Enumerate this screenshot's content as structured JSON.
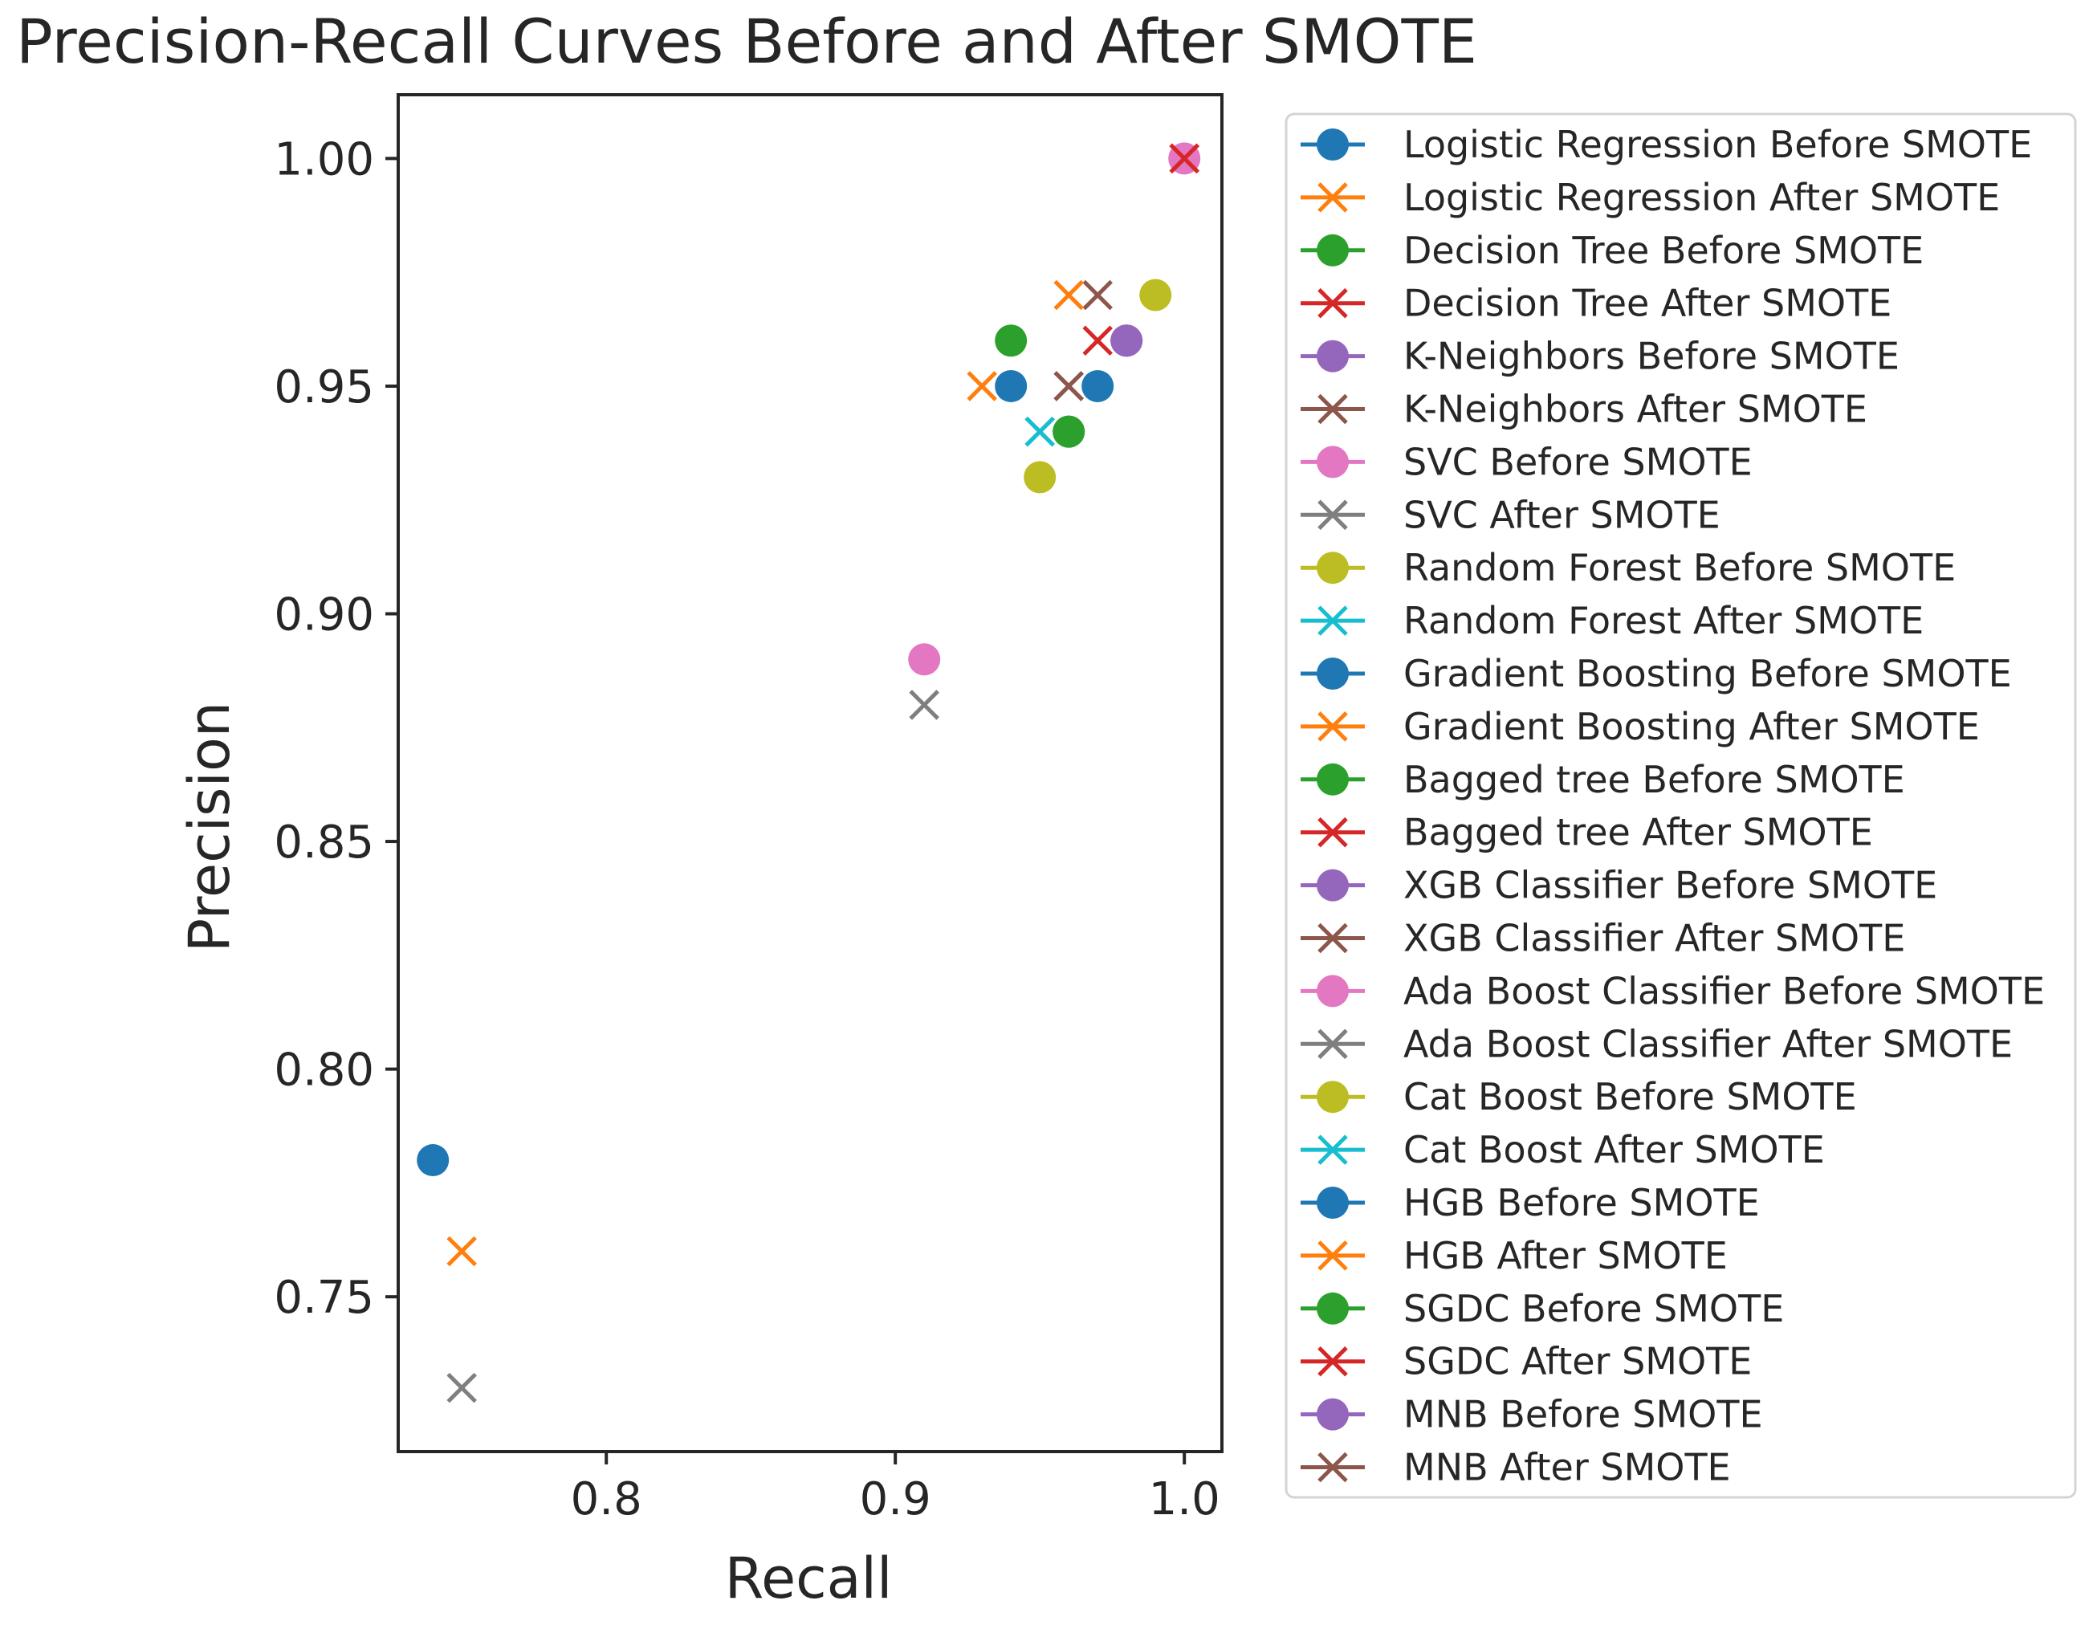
{
  "chart_data": {
    "type": "scatter",
    "title": "Precision-Recall Curves Before and After SMOTE",
    "xlabel": "Recall",
    "ylabel": "Precision",
    "xlim": [
      0.728,
      1.013
    ],
    "ylim": [
      0.716,
      1.014
    ],
    "xticks": [
      0.8,
      0.9,
      1.0
    ],
    "xtick_labels": [
      "0.8",
      "0.9",
      "1.0"
    ],
    "yticks": [
      0.75,
      0.8,
      0.85,
      0.9,
      0.95,
      1.0
    ],
    "ytick_labels": [
      "0.75",
      "0.80",
      "0.85",
      "0.90",
      "0.95",
      "1.00"
    ],
    "grid": false,
    "legend_position": "outside-right",
    "series": [
      {
        "name": "Logistic Regression Before SMOTE",
        "marker": "circle",
        "color": "#1f77b4",
        "points": [
          [
            0.74,
            0.78
          ]
        ]
      },
      {
        "name": "Logistic Regression After SMOTE",
        "marker": "x",
        "color": "#ff7f0e",
        "points": [
          [
            0.75,
            0.76
          ]
        ]
      },
      {
        "name": "Decision Tree Before SMOTE",
        "marker": "circle",
        "color": "#2ca02c",
        "points": [
          [
            0.94,
            0.96
          ]
        ]
      },
      {
        "name": "Decision Tree After SMOTE",
        "marker": "x",
        "color": "#d62728",
        "points": [
          [
            0.97,
            0.96
          ]
        ]
      },
      {
        "name": "K-Neighbors Before SMOTE",
        "marker": "circle",
        "color": "#9467bd",
        "points": [
          [
            0.98,
            0.96
          ]
        ]
      },
      {
        "name": "K-Neighbors After SMOTE",
        "marker": "x",
        "color": "#8c564b",
        "points": [
          [
            0.96,
            0.95
          ]
        ]
      },
      {
        "name": "SVC Before SMOTE",
        "marker": "circle",
        "color": "#e377c2",
        "points": [
          [
            1.0,
            1.0
          ]
        ]
      },
      {
        "name": "SVC After SMOTE",
        "marker": "x",
        "color": "#7f7f7f",
        "points": [
          [
            0.75,
            0.73
          ]
        ]
      },
      {
        "name": "Random Forest Before SMOTE",
        "marker": "circle",
        "color": "#bcbd22",
        "points": [
          [
            0.99,
            0.97
          ]
        ]
      },
      {
        "name": "Random Forest After SMOTE",
        "marker": "x",
        "color": "#17becf",
        "points": [
          [
            0.95,
            0.94
          ]
        ]
      },
      {
        "name": "Gradient Boosting Before SMOTE",
        "marker": "circle",
        "color": "#1f77b4",
        "points": [
          [
            0.94,
            0.95
          ]
        ]
      },
      {
        "name": "Gradient Boosting After SMOTE",
        "marker": "x",
        "color": "#ff7f0e",
        "points": [
          [
            0.93,
            0.95
          ]
        ]
      },
      {
        "name": "Bagged tree Before SMOTE",
        "marker": "circle",
        "color": "#2ca02c",
        "points": [
          [
            0.96,
            0.94
          ]
        ]
      },
      {
        "name": "Bagged tree After SMOTE",
        "marker": "x",
        "color": "#d62728",
        "points": [
          [
            1.0,
            1.0
          ]
        ]
      },
      {
        "name": "XGB Classifier Before SMOTE",
        "marker": "circle",
        "color": "#9467bd",
        "points": [
          [
            0.98,
            0.96
          ]
        ]
      },
      {
        "name": "XGB Classifier After SMOTE",
        "marker": "x",
        "color": "#8c564b",
        "points": [
          [
            0.97,
            0.97
          ]
        ]
      },
      {
        "name": "Ada Boost Classifier Before SMOTE",
        "marker": "circle",
        "color": "#e377c2",
        "points": [
          [
            0.91,
            0.89
          ]
        ]
      },
      {
        "name": "Ada Boost Classifier After SMOTE",
        "marker": "x",
        "color": "#7f7f7f",
        "points": [
          [
            0.91,
            0.88
          ]
        ]
      },
      {
        "name": "Cat Boost Before SMOTE",
        "marker": "circle",
        "color": "#bcbd22",
        "points": [
          [
            0.95,
            0.93
          ]
        ]
      },
      {
        "name": "Cat Boost After SMOTE",
        "marker": "x",
        "color": "#17becf",
        "points": [
          [
            0.95,
            0.94
          ]
        ]
      },
      {
        "name": "HGB Before SMOTE",
        "marker": "circle",
        "color": "#1f77b4",
        "points": [
          [
            0.97,
            0.95
          ]
        ]
      },
      {
        "name": "HGB After SMOTE",
        "marker": "x",
        "color": "#ff7f0e",
        "points": [
          [
            0.96,
            0.97
          ]
        ]
      },
      {
        "name": "SGDC Before SMOTE",
        "marker": "circle",
        "color": "#2ca02c",
        "points": [
          [
            0.96,
            0.94
          ]
        ]
      },
      {
        "name": "SGDC After SMOTE",
        "marker": "x",
        "color": "#d62728",
        "points": [
          [
            1.0,
            1.0
          ]
        ]
      },
      {
        "name": "MNB Before SMOTE",
        "marker": "circle",
        "color": "#9467bd",
        "points": [
          [
            0.98,
            0.96
          ]
        ]
      },
      {
        "name": "MNB After SMOTE",
        "marker": "x",
        "color": "#8c564b",
        "points": [
          [
            0.96,
            0.95
          ]
        ]
      }
    ]
  }
}
